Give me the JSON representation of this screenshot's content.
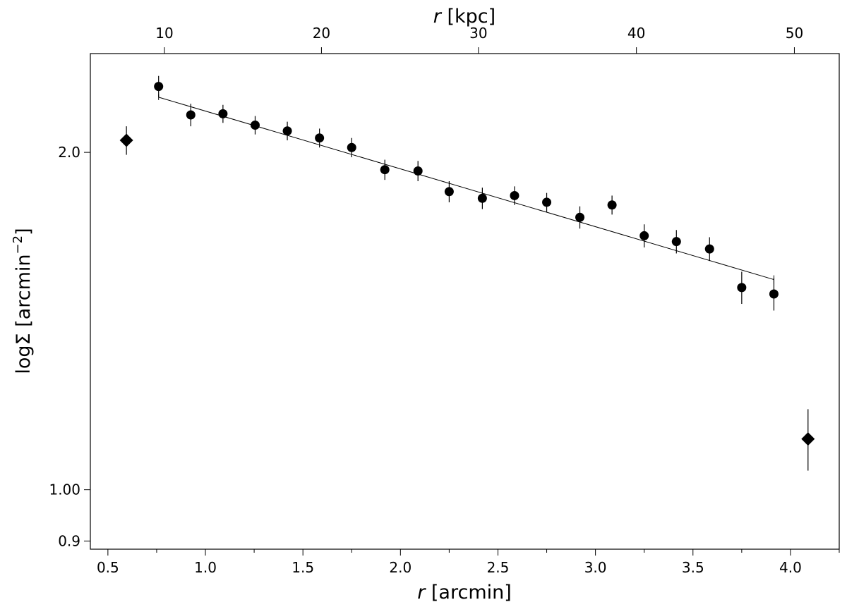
{
  "chart_data": {
    "type": "scatter",
    "title": "",
    "xlabel": {
      "var": "r",
      "unit": " [arcmin]"
    },
    "x2label": {
      "var": "r",
      "unit": " [kpc]"
    },
    "ylabel": {
      "base": "logΣ [arcmin",
      "sup": "−2",
      "tail": "]"
    },
    "xlim": [
      0.41,
      4.25
    ],
    "ylim": [
      0.885,
      2.45
    ],
    "yscale": "log",
    "x_ticks": [
      "0.5",
      "1.0",
      "1.5",
      "2.0",
      "2.5",
      "3.0",
      "3.5",
      "4.0"
    ],
    "x_tick_values": [
      0.5,
      1.0,
      1.5,
      2.0,
      2.5,
      3.0,
      3.5,
      4.0
    ],
    "x2_ticks": [
      "10",
      "20",
      "30",
      "40",
      "50"
    ],
    "x2_tick_values_arcmin": [
      0.79,
      1.595,
      2.4,
      3.21,
      4.02
    ],
    "y_ticks": [
      "0.9",
      "1.00",
      "2.0"
    ],
    "y_tick_values": [
      0.9,
      1.0,
      2.0
    ],
    "grid": false,
    "legend": "none",
    "series": [
      {
        "marker": "circle",
        "points": [
          {
            "x": 0.76,
            "y": 2.29,
            "err": 0.05
          },
          {
            "x": 0.925,
            "y": 2.16,
            "err": 0.05
          },
          {
            "x": 1.09,
            "y": 2.165,
            "err": 0.04
          },
          {
            "x": 1.255,
            "y": 2.115,
            "err": 0.04
          },
          {
            "x": 1.42,
            "y": 2.09,
            "err": 0.04
          },
          {
            "x": 1.585,
            "y": 2.06,
            "err": 0.04
          },
          {
            "x": 1.75,
            "y": 2.02,
            "err": 0.04
          },
          {
            "x": 1.92,
            "y": 1.93,
            "err": 0.04
          },
          {
            "x": 2.09,
            "y": 1.925,
            "err": 0.04
          },
          {
            "x": 2.25,
            "y": 1.845,
            "err": 0.04
          },
          {
            "x": 2.42,
            "y": 1.82,
            "err": 0.04
          },
          {
            "x": 2.585,
            "y": 1.83,
            "err": 0.035
          },
          {
            "x": 2.75,
            "y": 1.805,
            "err": 0.035
          },
          {
            "x": 2.92,
            "y": 1.75,
            "err": 0.04
          },
          {
            "x": 3.085,
            "y": 1.795,
            "err": 0.035
          },
          {
            "x": 3.25,
            "y": 1.685,
            "err": 0.04
          },
          {
            "x": 3.415,
            "y": 1.665,
            "err": 0.04
          },
          {
            "x": 3.585,
            "y": 1.64,
            "err": 0.04
          },
          {
            "x": 3.75,
            "y": 1.515,
            "err": 0.05
          },
          {
            "x": 3.915,
            "y": 1.495,
            "err": 0.05
          }
        ]
      },
      {
        "marker": "diamond",
        "points": [
          {
            "x": 0.595,
            "y": 2.05,
            "err": 0.06
          },
          {
            "x": 4.09,
            "y": 1.11,
            "err": 0.07
          }
        ]
      }
    ],
    "fit_line": {
      "x": [
        0.76,
        3.915
      ],
      "y": [
        2.24,
        1.54
      ]
    }
  }
}
